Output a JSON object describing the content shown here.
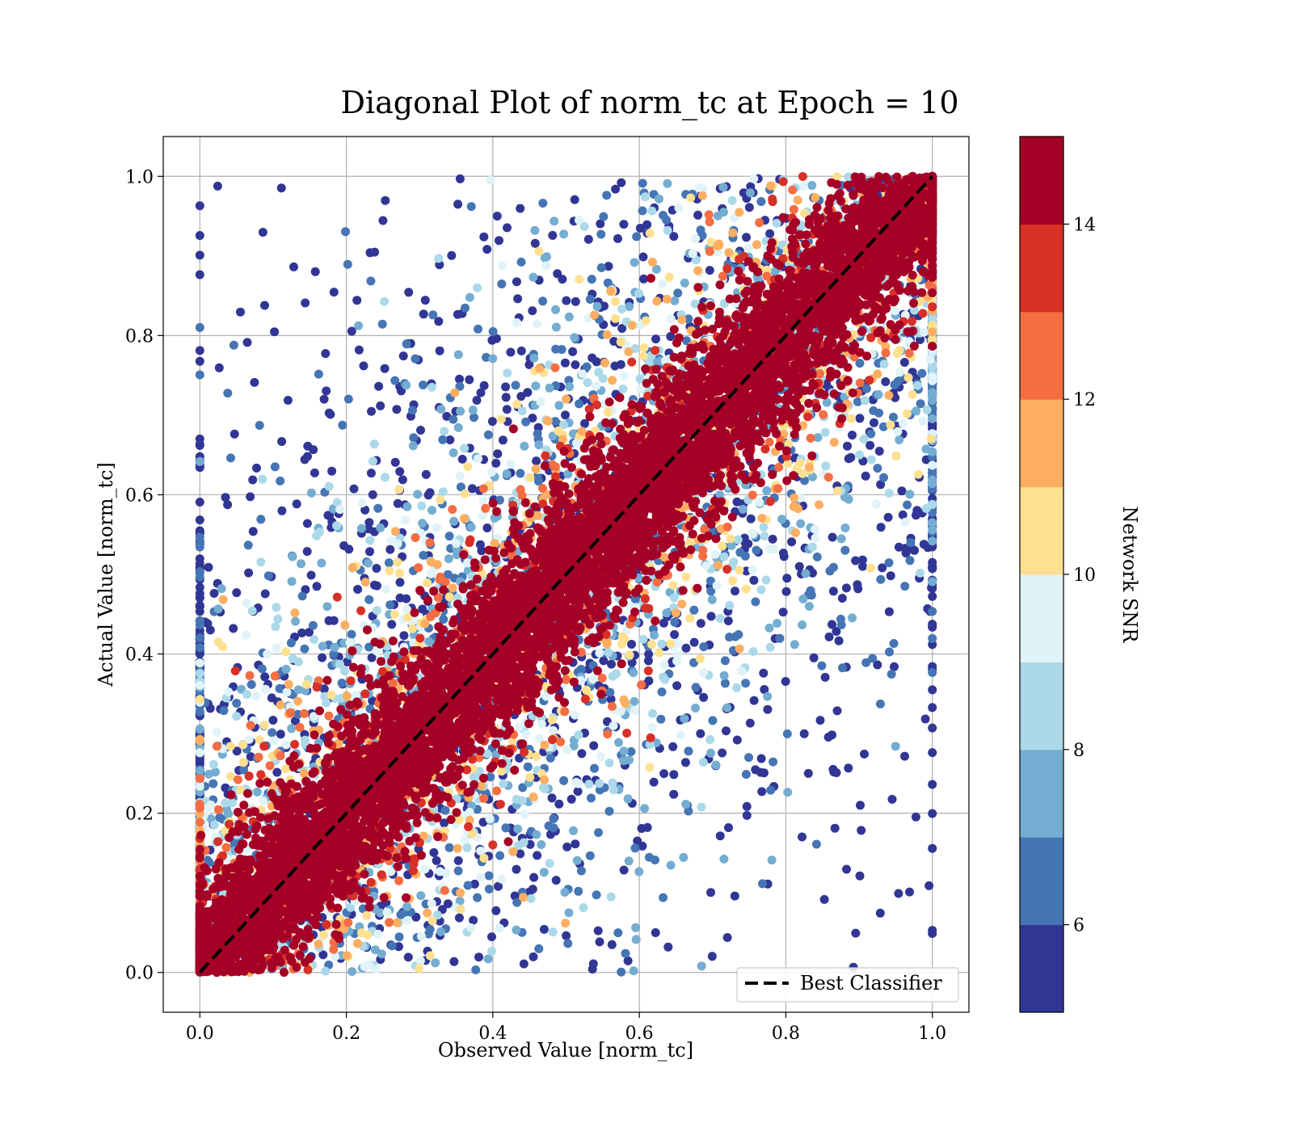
{
  "chart_data": {
    "type": "scatter",
    "title": "Diagonal Plot of norm_tc at Epoch = 10",
    "xlabel": "Observed Value [norm_tc]",
    "ylabel": "Actual Value [norm_tc]",
    "xlim": [
      -0.05,
      1.05
    ],
    "ylim": [
      -0.05,
      1.05
    ],
    "x_ticks": [
      "0.0",
      "0.2",
      "0.4",
      "0.6",
      "0.8",
      "1.0"
    ],
    "y_ticks": [
      "0.0",
      "0.2",
      "0.4",
      "0.6",
      "0.8",
      "1.0"
    ],
    "grid": true,
    "reference_line": {
      "name": "Best Classifier",
      "from": [
        0,
        0
      ],
      "to": [
        1,
        1
      ],
      "style": "dashed",
      "color": "#000000"
    },
    "legend": {
      "entries": [
        "Best Classifier"
      ],
      "placement": "lower-right"
    },
    "colorbar": {
      "label": "Network SNR",
      "range": [
        5,
        15
      ],
      "ticks": [
        "6",
        "8",
        "10",
        "12",
        "14"
      ],
      "colors": [
        "#313695",
        "#4575b4",
        "#74add1",
        "#abd9e9",
        "#e0f3f8",
        "#fee090",
        "#fdae61",
        "#f46d43",
        "#d73027",
        "#a50026"
      ]
    },
    "points": {
      "description_of_distribution": "high-SNR points tightly along diagonal; low-SNR points widely scattered",
      "clip_range": [
        0,
        1
      ]
    }
  }
}
